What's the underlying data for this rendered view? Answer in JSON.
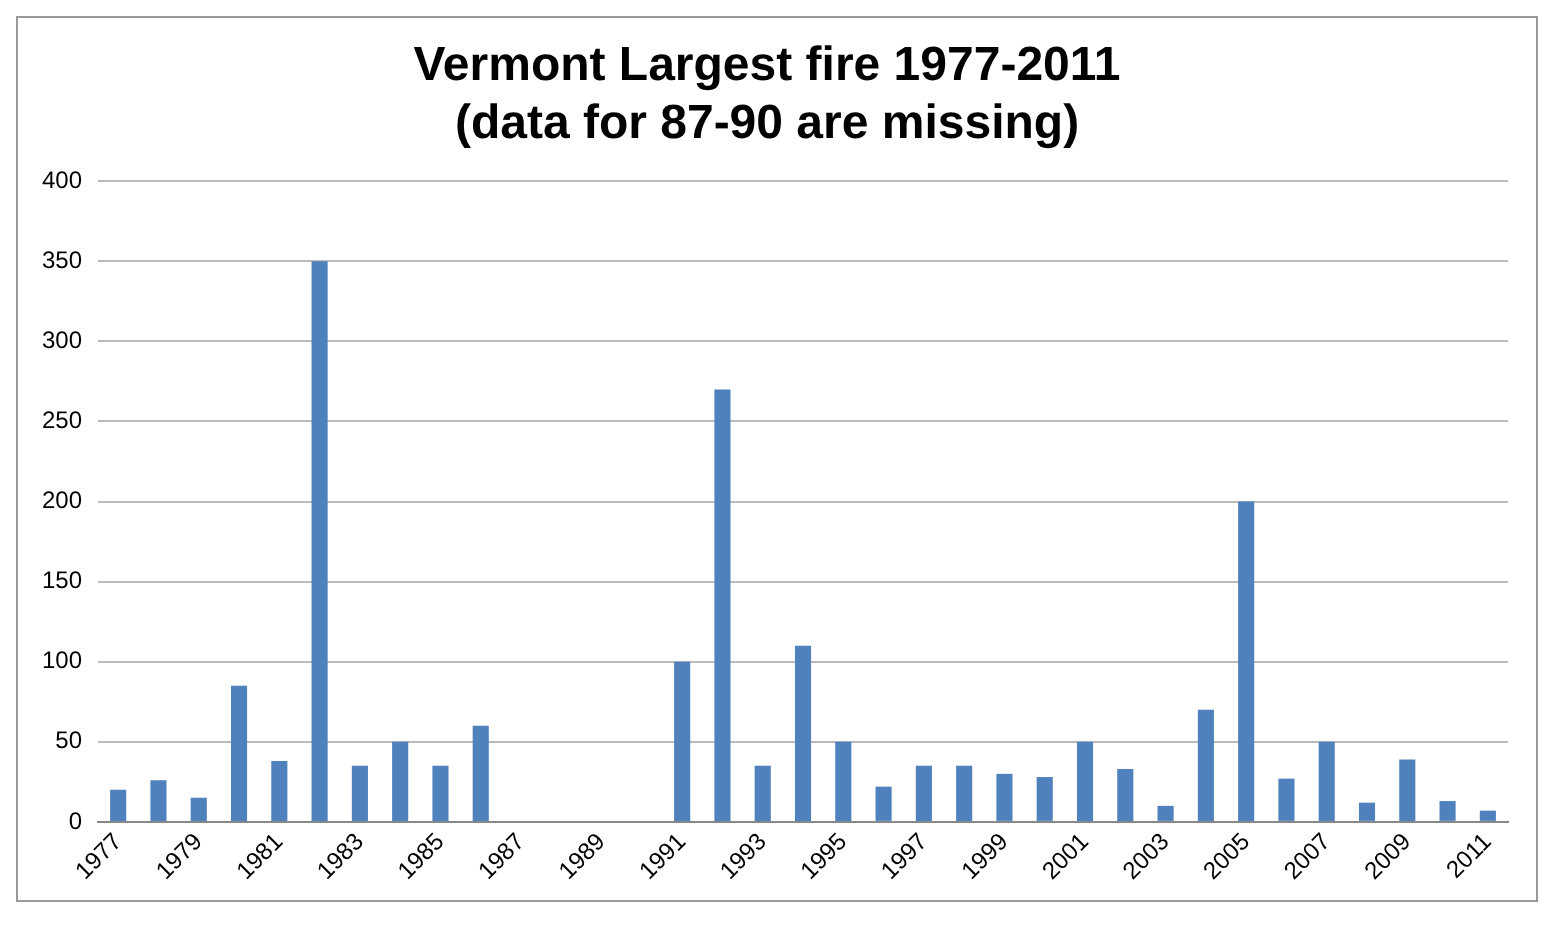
{
  "chart_data": {
    "type": "bar",
    "title": [
      "Vermont Largest fire 1977-2011",
      "(data for 87-90 are missing)"
    ],
    "categories": [
      "1977",
      null,
      "1979",
      null,
      "1981",
      null,
      "1983",
      null,
      "1985",
      null,
      "1987",
      null,
      "1989",
      null,
      "1991",
      null,
      "1993",
      null,
      "1995",
      null,
      "1997",
      null,
      "1999",
      null,
      "2001",
      null,
      "2003",
      null,
      "2005",
      null,
      "2007",
      null,
      "2009",
      null,
      "2011"
    ],
    "values": [
      20,
      26,
      15,
      85,
      38,
      350,
      35,
      50,
      35,
      60,
      null,
      null,
      null,
      null,
      100,
      270,
      35,
      110,
      50,
      22,
      35,
      35,
      30,
      28,
      50,
      33,
      10,
      70,
      200,
      27,
      50,
      12,
      39,
      13,
      7
    ],
    "color": "#4f81bd",
    "ylim": [
      0,
      400
    ],
    "yticks": [
      0,
      50,
      100,
      150,
      200,
      250,
      300,
      350,
      400
    ],
    "grid": "y",
    "legend": false
  }
}
